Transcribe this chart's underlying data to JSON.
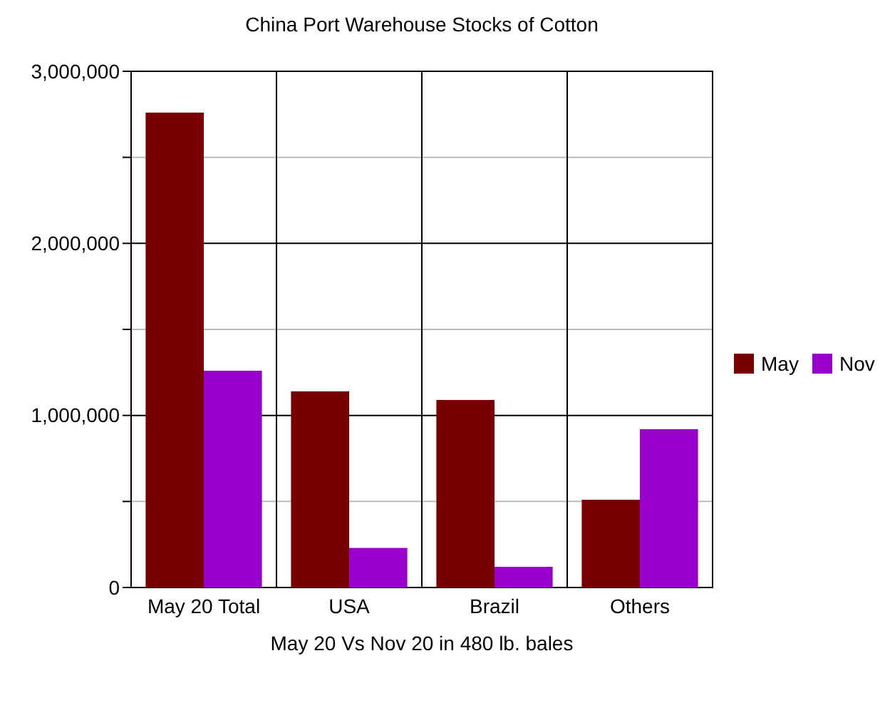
{
  "chart_data": {
    "type": "bar",
    "title": "China Port Warehouse Stocks of Cotton",
    "xlabel": "May 20 Vs Nov 20 in 480 lb. bales",
    "categories": [
      "May 20 Total",
      "USA",
      "Brazil",
      "Others"
    ],
    "series": [
      {
        "name": "May",
        "color": "#770000",
        "values": [
          2760000,
          1140000,
          1090000,
          510000
        ]
      },
      {
        "name": "Nov",
        "color": "#9900cc",
        "values": [
          1260000,
          230000,
          120000,
          920000
        ]
      }
    ],
    "ylim": [
      0,
      3000000
    ],
    "yticks": [
      0,
      {
        "value": 500000,
        "label": null
      },
      {
        "value": 1000000,
        "label": "1,000,000"
      },
      {
        "value": 1500000,
        "label": null
      },
      {
        "value": 2000000,
        "label": "2,000,000"
      },
      {
        "value": 2500000,
        "label": null
      },
      {
        "value": 3000000,
        "label": "3,000,000"
      }
    ],
    "grid": true,
    "legend": "right"
  }
}
